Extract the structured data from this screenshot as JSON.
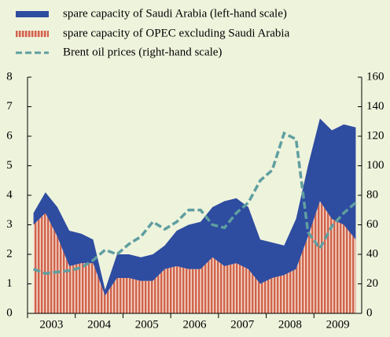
{
  "chart_data": {
    "type": "stacked-area-line",
    "categories": [
      null,
      "2003",
      null,
      null,
      null,
      "2004",
      null,
      null,
      null,
      "2005",
      null,
      null,
      null,
      "2006",
      null,
      null,
      null,
      "2007",
      null,
      null,
      null,
      "2008",
      null,
      null,
      null,
      "2009",
      null,
      null
    ],
    "series": [
      {
        "name": "spare capacity of OPEC excluding Saudi Arabia",
        "color": "#d0634c",
        "values": [
          3.0,
          3.4,
          2.6,
          1.6,
          1.7,
          1.7,
          0.6,
          1.2,
          1.2,
          1.1,
          1.1,
          1.5,
          1.6,
          1.5,
          1.5,
          1.9,
          1.6,
          1.7,
          1.5,
          1.0,
          1.2,
          1.3,
          1.5,
          2.6,
          3.8,
          3.2,
          3.0,
          2.5
        ]
      },
      {
        "name": "spare capacity of Saudi Arabia (left-hand scale)",
        "color": "#2e4ca0",
        "values": [
          0.4,
          0.7,
          1.0,
          1.2,
          1.0,
          0.8,
          0.2,
          0.8,
          0.8,
          0.8,
          0.9,
          0.8,
          1.2,
          1.5,
          1.6,
          1.7,
          2.2,
          2.2,
          2.1,
          1.5,
          1.2,
          1.0,
          1.7,
          2.4,
          2.8,
          3.0,
          3.4,
          3.8
        ]
      },
      {
        "name": "Brent oil prices (right-hand scale)",
        "color": "#5f9ea0",
        "axis": "y2",
        "values": [
          30,
          27,
          28,
          29,
          31,
          36,
          43,
          40,
          47,
          52,
          62,
          57,
          62,
          70,
          70,
          60,
          58,
          68,
          75,
          90,
          97,
          122,
          118,
          55,
          44,
          59,
          68,
          75
        ]
      }
    ],
    "ylim": [
      0,
      8
    ],
    "yticks": [
      0,
      1,
      2,
      3,
      4,
      5,
      6,
      7,
      8
    ],
    "y2lim": [
      0,
      160
    ],
    "y2ticks": [
      0,
      20,
      40,
      60,
      80,
      100,
      120,
      140,
      160
    ]
  }
}
